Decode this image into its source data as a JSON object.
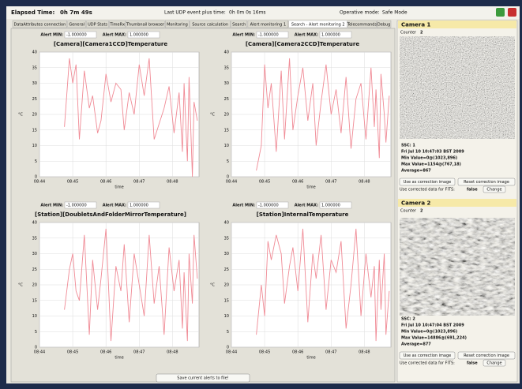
{
  "header": {
    "elapsed_label": "Elapsed Time:",
    "elapsed": "0h 7m 49s",
    "udp_label": "Last UDP event plus time:",
    "udp_value": "0h 0m 0s 16ms",
    "mode_label": "Operative mode:",
    "mode": "Safe Mode"
  },
  "tabs": [
    "DataAttributes connection",
    "General",
    "UDP Stats",
    "TimeRx",
    "Thumbnail browser",
    "Monitoring",
    "Source calculation",
    "Search",
    "Alert monitoring 1",
    "Search - Alert monitoring 2",
    "Telecommands",
    "Debug"
  ],
  "chart_data": [
    {
      "type": "line",
      "title": "[Camera][Camera1CCD]Temperature",
      "alert_min_label": "Alert MIN:",
      "alert_min": "-1.000000",
      "alert_max_label": "Alert MAX:",
      "alert_max": "1.000000",
      "y_label": "°C",
      "x_label": "time",
      "color": "#f08a95",
      "grid": true,
      "ylim": [
        0,
        40
      ],
      "yticks": [
        0,
        5,
        10,
        15,
        20,
        25,
        30,
        35,
        40
      ],
      "xlim": [
        44,
        48.8
      ],
      "xticks": [
        {
          "value": 44,
          "label": "08:44"
        },
        {
          "value": 45,
          "label": "08:45"
        },
        {
          "value": 46,
          "label": "08:46"
        },
        {
          "value": 47,
          "label": "08:47"
        },
        {
          "value": 48,
          "label": "08:48"
        }
      ],
      "x": [
        44.75,
        44.9,
        45.0,
        45.1,
        45.2,
        45.35,
        45.5,
        45.6,
        45.75,
        45.85,
        46.0,
        46.15,
        46.3,
        46.45,
        46.55,
        46.7,
        46.85,
        47.0,
        47.15,
        47.3,
        47.45,
        47.6,
        47.75,
        47.9,
        48.05,
        48.2,
        48.3,
        48.35,
        48.45,
        48.5,
        48.6,
        48.65,
        48.75
      ],
      "values": [
        16,
        38,
        30,
        36,
        12,
        34,
        22,
        26,
        14,
        18,
        33,
        24,
        30,
        28,
        15,
        27,
        20,
        36,
        26,
        38,
        12,
        17,
        22,
        29,
        14,
        27,
        8,
        30,
        5,
        32,
        0,
        24,
        18
      ]
    },
    {
      "type": "line",
      "title": "[Camera][Camera2CCD]Temperature",
      "alert_min_label": "Alert MIN:",
      "alert_min": "-1.000000",
      "alert_max_label": "Alert MAX:",
      "alert_max": "1.000000",
      "y_label": "°C",
      "x_label": "time",
      "color": "#f08a95",
      "grid": true,
      "ylim": [
        0,
        40
      ],
      "yticks": [
        0,
        5,
        10,
        15,
        20,
        25,
        30,
        35,
        40
      ],
      "xlim": [
        44,
        48.8
      ],
      "xticks": [
        {
          "value": 44,
          "label": "08:44"
        },
        {
          "value": 45,
          "label": "08:45"
        },
        {
          "value": 46,
          "label": "08:46"
        },
        {
          "value": 47,
          "label": "08:47"
        },
        {
          "value": 48,
          "label": "08:48"
        }
      ],
      "x": [
        44.75,
        44.9,
        45.0,
        45.1,
        45.2,
        45.35,
        45.5,
        45.6,
        45.75,
        45.85,
        46.0,
        46.15,
        46.3,
        46.45,
        46.55,
        46.7,
        46.85,
        47.0,
        47.15,
        47.3,
        47.45,
        47.6,
        47.75,
        47.9,
        48.05,
        48.2,
        48.3,
        48.35,
        48.45,
        48.5,
        48.6,
        48.65,
        48.75
      ],
      "values": [
        2,
        10,
        36,
        22,
        30,
        8,
        34,
        12,
        38,
        15,
        26,
        35,
        18,
        30,
        10,
        24,
        36,
        20,
        28,
        14,
        32,
        9,
        25,
        30,
        12,
        35,
        16,
        28,
        6,
        33,
        20,
        11,
        26
      ]
    },
    {
      "type": "line",
      "title": "[Station][DoubletsAndFolderMirrorTemperature]",
      "alert_min_label": "Alert MIN:",
      "alert_min": "-1.000000",
      "alert_max_label": "Alert MAX:",
      "alert_max": "1.000000",
      "y_label": "°C",
      "x_label": "time",
      "color": "#f08a95",
      "grid": true,
      "ylim": [
        0,
        40
      ],
      "yticks": [
        0,
        5,
        10,
        15,
        20,
        25,
        30,
        35,
        40
      ],
      "xlim": [
        44,
        48.8
      ],
      "xticks": [
        {
          "value": 44,
          "label": "08:44"
        },
        {
          "value": 45,
          "label": "08:45"
        },
        {
          "value": 46,
          "label": "08:46"
        },
        {
          "value": 47,
          "label": "08:47"
        },
        {
          "value": 48,
          "label": "08:48"
        }
      ],
      "x": [
        44.75,
        44.9,
        45.0,
        45.1,
        45.2,
        45.35,
        45.5,
        45.6,
        45.75,
        45.85,
        46.0,
        46.15,
        46.3,
        46.45,
        46.55,
        46.7,
        46.85,
        47.0,
        47.15,
        47.3,
        47.45,
        47.6,
        47.75,
        47.9,
        48.05,
        48.2,
        48.3,
        48.35,
        48.45,
        48.5,
        48.6,
        48.65,
        48.75
      ],
      "values": [
        12,
        25,
        30,
        18,
        15,
        36,
        4,
        28,
        12,
        22,
        38,
        2,
        26,
        18,
        33,
        8,
        30,
        20,
        10,
        36,
        14,
        26,
        4,
        32,
        18,
        28,
        6,
        24,
        2,
        30,
        14,
        36,
        22
      ]
    },
    {
      "type": "line",
      "title": "[Station]InternalTemperature",
      "alert_min_label": "Alert MIN:",
      "alert_min": "-1.000000",
      "alert_max_label": "Alert MAX:",
      "alert_max": "1.000000",
      "y_label": "°C",
      "x_label": "time",
      "color": "#f08a95",
      "grid": true,
      "ylim": [
        0,
        40
      ],
      "yticks": [
        0,
        5,
        10,
        15,
        20,
        25,
        30,
        35,
        40
      ],
      "xlim": [
        44,
        48.8
      ],
      "xticks": [
        {
          "value": 44,
          "label": "08:44"
        },
        {
          "value": 45,
          "label": "08:45"
        },
        {
          "value": 46,
          "label": "08:46"
        },
        {
          "value": 47,
          "label": "08:47"
        },
        {
          "value": 48,
          "label": "08:48"
        }
      ],
      "x": [
        44.75,
        44.9,
        45.0,
        45.1,
        45.2,
        45.35,
        45.5,
        45.6,
        45.75,
        45.85,
        46.0,
        46.15,
        46.3,
        46.45,
        46.55,
        46.7,
        46.85,
        47.0,
        47.15,
        47.3,
        47.45,
        47.6,
        47.75,
        47.9,
        48.05,
        48.2,
        48.3,
        48.35,
        48.45,
        48.5,
        48.6,
        48.65,
        48.75
      ],
      "values": [
        4,
        20,
        10,
        34,
        28,
        36,
        30,
        14,
        26,
        32,
        18,
        38,
        8,
        30,
        22,
        36,
        12,
        28,
        24,
        34,
        6,
        20,
        38,
        10,
        30,
        16,
        26,
        2,
        28,
        12,
        30,
        4,
        18
      ]
    }
  ],
  "save_button": "Save current alerts to file!",
  "cameras": [
    {
      "title": "Camera 1",
      "counter_label": "Counter",
      "counter": "2",
      "ssc": "SSC: 1",
      "date": "Fri Jul 10 10:47:03 BST 2009",
      "min": "Min Value=0@(1023,896)",
      "max": "Max Value=1154@(767,18)",
      "average": "Average=867",
      "use_button": "Use as correction image",
      "reset_button": "Reset correction image",
      "fits_label": "Use corrected data for FITS:",
      "fits_value": "false",
      "change_button": "Change"
    },
    {
      "title": "Camera 2",
      "counter_label": "Counter",
      "counter": "2",
      "ssc": "SSC: 2",
      "date": "Fri Jul 10 10:47:04 BST 2009",
      "min": "Min Value=0@(1023,896)",
      "max": "Max Value=14886@(691,224)",
      "average": "Average=877",
      "use_button": "Use as correction image",
      "reset_button": "Reset correction image",
      "fits_label": "Use corrected data for FITS:",
      "fits_value": "false",
      "change_button": "Change"
    }
  ]
}
